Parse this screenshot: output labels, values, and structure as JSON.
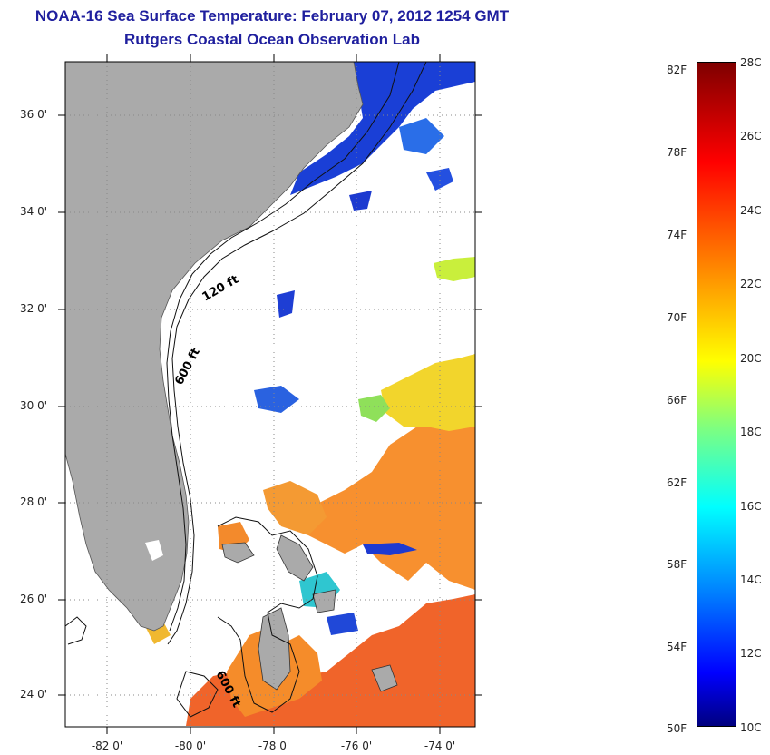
{
  "title": "NOAA-16 Sea Surface Temperature:  February 07, 2012 1254 GMT",
  "subtitle": "Rutgers Coastal Ocean Observation Lab",
  "lat_labels": [
    "36 0'",
    "34 0'",
    "32 0'",
    "30 0'",
    "28 0'",
    "26 0'",
    "24 0'"
  ],
  "lon_labels": [
    "-82 0'",
    "-80 0'",
    "-78 0'",
    "-76 0'",
    "-74 0'"
  ],
  "contour_labels": {
    "c120": "120 ft",
    "c600a": "600 ft",
    "c600b": "600 ft"
  },
  "colorbar": {
    "f_labels": [
      "82F",
      "78F",
      "74F",
      "70F",
      "66F",
      "62F",
      "58F",
      "54F",
      "50F"
    ],
    "c_labels": [
      "28C",
      "26C",
      "24C",
      "22C",
      "20C",
      "18C",
      "16C",
      "14C",
      "12C",
      "10C"
    ],
    "range_c": [
      10,
      28
    ],
    "colormap": "jet"
  },
  "colors": {
    "land": "#aaaaaa",
    "title": "#1f1f9e",
    "ocean_missing": "#ffffff"
  }
}
